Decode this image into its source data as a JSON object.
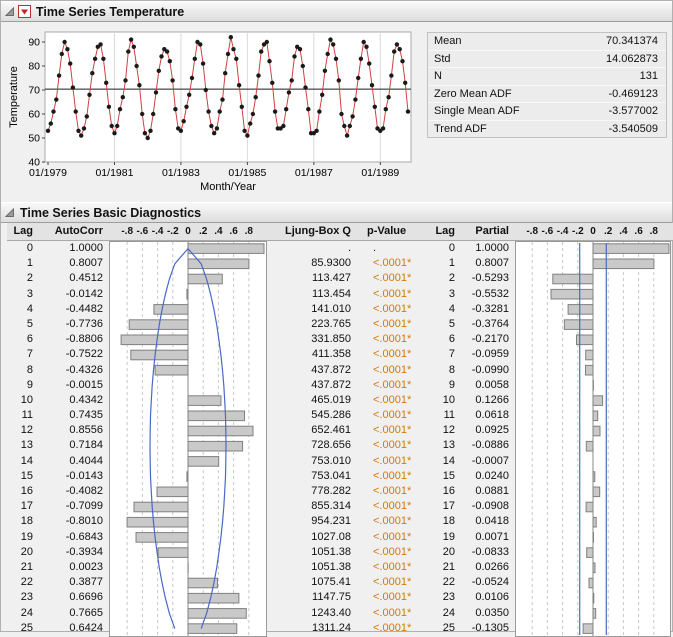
{
  "sections": {
    "temperature": {
      "title": "Time Series Temperature"
    },
    "diagnostics": {
      "title": "Time Series Basic Diagnostics"
    }
  },
  "colors": {
    "series_line": "#d04040",
    "marker": "#1a1a1a",
    "mean_line": "#1a1a1a",
    "bar_fill": "#c9c9c9",
    "bar_stroke": "#808080",
    "conf_blue": "#4a68c8",
    "p_value_orange": "#d4780a"
  },
  "stats": {
    "rows": [
      {
        "label": "Mean",
        "value": "70.341374"
      },
      {
        "label": "Std",
        "value": "14.062873"
      },
      {
        "label": "N",
        "value": "131"
      },
      {
        "label": "Zero Mean ADF",
        "value": "-0.469123"
      },
      {
        "label": "Single Mean ADF",
        "value": "-3.577002"
      },
      {
        "label": "Trend ADF",
        "value": "-3.540509"
      }
    ]
  },
  "diag_table": {
    "headers": {
      "lag": "Lag",
      "autocorr": "AutoCorr",
      "ljung": "Ljung-Box Q",
      "pvalue": "p-Value",
      "lag2": "Lag",
      "partial": "Partial"
    },
    "lags": [
      "0",
      "1",
      "2",
      "3",
      "4",
      "5",
      "6",
      "7",
      "8",
      "9",
      "10",
      "11",
      "12",
      "13",
      "14",
      "15",
      "16",
      "17",
      "18",
      "19",
      "20",
      "21",
      "22",
      "23",
      "24",
      "25"
    ],
    "autocorr": [
      "1.0000",
      "0.8007",
      "0.4512",
      "-0.0142",
      "-0.4482",
      "-0.7736",
      "-0.8806",
      "-0.7522",
      "-0.4326",
      "-0.0015",
      "0.4342",
      "0.7435",
      "0.8556",
      "0.7184",
      "0.4044",
      "-0.0143",
      "-0.4082",
      "-0.7099",
      "-0.8010",
      "-0.6843",
      "-0.3934",
      "0.0023",
      "0.3877",
      "0.6696",
      "0.7665",
      "0.6424"
    ],
    "ljung": [
      ".",
      "85.9300",
      "113.427",
      "113.454",
      "141.010",
      "223.765",
      "331.850",
      "411.358",
      "437.872",
      "437.872",
      "465.019",
      "545.286",
      "652.461",
      "728.656",
      "753.010",
      "753.041",
      "778.282",
      "855.314",
      "954.231",
      "1027.08",
      "1051.38",
      "1051.38",
      "1075.41",
      "1147.75",
      "1243.40",
      "1311.24"
    ],
    "pvalue": [
      ".",
      "<.0001*",
      "<.0001*",
      "<.0001*",
      "<.0001*",
      "<.0001*",
      "<.0001*",
      "<.0001*",
      "<.0001*",
      "<.0001*",
      "<.0001*",
      "<.0001*",
      "<.0001*",
      "<.0001*",
      "<.0001*",
      "<.0001*",
      "<.0001*",
      "<.0001*",
      "<.0001*",
      "<.0001*",
      "<.0001*",
      "<.0001*",
      "<.0001*",
      "<.0001*",
      "<.0001*",
      "<.0001*"
    ],
    "partial": [
      "1.0000",
      "0.8007",
      "-0.5293",
      "-0.5532",
      "-0.3281",
      "-0.3764",
      "-0.2170",
      "-0.0959",
      "-0.0990",
      "0.0058",
      "0.1266",
      "0.0618",
      "0.0925",
      "-0.0886",
      "-0.0007",
      "0.0240",
      "0.0881",
      "-0.0908",
      "0.0418",
      "0.0071",
      "-0.0833",
      "0.0266",
      "-0.0524",
      "0.0106",
      "0.0350",
      "-0.1305"
    ]
  },
  "chart_data": [
    {
      "type": "line",
      "name": "time-series-plot",
      "xlabel": "Month/Year",
      "ylabel": "Temperature",
      "ylim": [
        40,
        95
      ],
      "yticks": [
        40,
        50,
        60,
        70,
        80,
        90
      ],
      "xtick_labels": [
        "01/1979",
        "01/1981",
        "01/1983",
        "01/1985",
        "01/1987",
        "01/1989"
      ],
      "xtick_index": [
        0,
        24,
        48,
        72,
        96,
        120
      ],
      "mean_line": 70.341374,
      "grid": "vertical",
      "values": [
        53,
        56,
        61,
        66,
        76,
        85,
        90,
        87,
        81,
        71,
        61,
        53,
        51,
        54,
        59,
        68,
        77,
        83,
        88,
        89,
        83,
        73,
        63,
        55,
        52,
        55,
        62,
        67,
        74,
        86,
        91,
        88,
        80,
        72,
        60,
        52,
        50,
        53,
        60,
        69,
        78,
        84,
        87,
        86,
        82,
        74,
        62,
        54,
        53,
        57,
        63,
        68,
        75,
        83,
        90,
        89,
        81,
        70,
        61,
        55,
        52,
        54,
        61,
        66,
        77,
        85,
        92,
        87,
        83,
        72,
        63,
        53,
        51,
        56,
        60,
        67,
        76,
        86,
        89,
        90,
        82,
        73,
        61,
        54,
        54,
        55,
        62,
        69,
        74,
        84,
        88,
        87,
        80,
        71,
        62,
        52,
        52,
        53,
        61,
        68,
        78,
        85,
        91,
        89,
        83,
        74,
        60,
        55,
        51,
        55,
        59,
        66,
        75,
        83,
        90,
        88,
        81,
        72,
        63,
        54,
        53,
        54,
        62,
        67,
        76,
        86,
        89,
        87,
        82,
        73,
        61
      ]
    },
    {
      "type": "bar",
      "name": "autocorrelation-plot",
      "xlim": [
        -1,
        1
      ],
      "tick_labels": [
        "-.8",
        "-.6",
        "-.4",
        "-.2",
        "0",
        ".2",
        ".4",
        ".6",
        ".8"
      ],
      "values": [
        1,
        0.8007,
        0.4512,
        -0.0142,
        -0.4482,
        -0.7736,
        -0.8806,
        -0.7522,
        -0.4326,
        -0.0015,
        0.4342,
        0.7435,
        0.8556,
        0.7184,
        0.4044,
        -0.0143,
        -0.4082,
        -0.7099,
        -0.801,
        -0.6843,
        -0.3934,
        0.0023,
        0.3877,
        0.6696,
        0.7665,
        0.6424
      ],
      "conf_curve": [
        0,
        0.174,
        0.245,
        0.298,
        0.341,
        0.377,
        0.407,
        0.433,
        0.454,
        0.471,
        0.483,
        0.493,
        0.498,
        0.5,
        0.498,
        0.493,
        0.483,
        0.471,
        0.454,
        0.433,
        0.407,
        0.377,
        0.341,
        0.298,
        0.245,
        0.174
      ]
    },
    {
      "type": "bar",
      "name": "partial-autocorrelation-plot",
      "xlim": [
        -1,
        1
      ],
      "tick_labels": [
        "-.8",
        "-.6",
        "-.4",
        "-.2",
        "0",
        ".2",
        ".4",
        ".6",
        ".8"
      ],
      "values": [
        1,
        0.8007,
        -0.5293,
        -0.5532,
        -0.3281,
        -0.3764,
        -0.217,
        -0.0959,
        -0.099,
        0.0058,
        0.1266,
        0.0618,
        0.0925,
        -0.0886,
        -0.0007,
        0.024,
        0.0881,
        -0.0908,
        0.0418,
        0.0071,
        -0.0833,
        0.0266,
        -0.0524,
        0.0106,
        0.035,
        -0.1305
      ],
      "conf_limit": 0.1747
    }
  ]
}
